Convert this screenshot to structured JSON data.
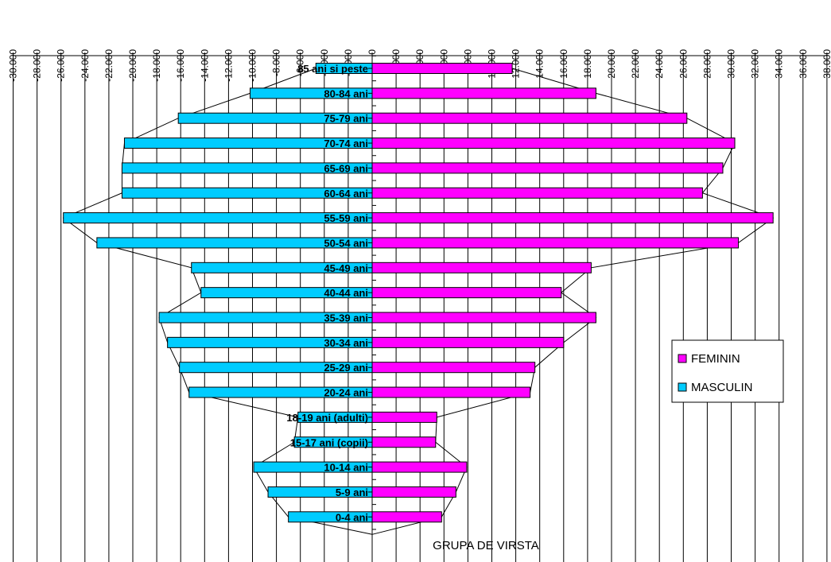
{
  "chart_data": {
    "type": "bar",
    "orientation": "horizontal",
    "categories": [
      "0-4 ani",
      "5-9 ani",
      "10-14 ani",
      "15-17 ani (copii)",
      "18-19 ani (adulti)",
      "20-24 ani",
      "25-29 ani",
      "30-34 ani",
      "35-39 ani",
      "40-44 ani",
      "45-49 ani",
      "50-54 ani",
      "55-59 ani",
      "60-64 ani",
      "65-69 ani",
      "70-74 ani",
      "75-79 ani",
      "80-84 ani",
      "85 ani si peste"
    ],
    "series": [
      {
        "name": "FEMININ",
        "color": "#ff00ff",
        "values": [
          5800,
          7000,
          7900,
          5300,
          5400,
          13200,
          13600,
          16000,
          18700,
          15800,
          18300,
          30600,
          33500,
          27600,
          29300,
          30300,
          26300,
          18700,
          11700
        ]
      },
      {
        "name": "MASCULIN",
        "color": "#00ccff",
        "values": [
          -7000,
          -8700,
          -9900,
          -6500,
          -6200,
          -15300,
          -16100,
          -17100,
          -17800,
          -14300,
          -15100,
          -23000,
          -25800,
          -20900,
          -20900,
          -20700,
          -16200,
          -10200,
          -4700
        ]
      }
    ],
    "x_ticks": [
      "-30.000",
      "-28.000",
      "-26.000",
      "-24.000",
      "-22.000",
      "-20.000",
      "-18.000",
      "-16.000",
      "-14.000",
      "-12.000",
      "-10.000",
      "-8.000",
      "-6.000",
      "-4.000",
      "-2.000",
      "0",
      "2.000",
      "4.000",
      "6.000",
      "8.000",
      "10.000",
      "12.000",
      "14.000",
      "16.000",
      "18.000",
      "20.000",
      "22.000",
      "24.000",
      "26.000",
      "28.000",
      "30.000",
      "32.000",
      "34.000",
      "36.000",
      "38.000"
    ],
    "xlim": [
      -30000,
      38000
    ],
    "xlabel": "GRUPA DE VIRSTA",
    "grid": true,
    "legend_placement": "right"
  }
}
